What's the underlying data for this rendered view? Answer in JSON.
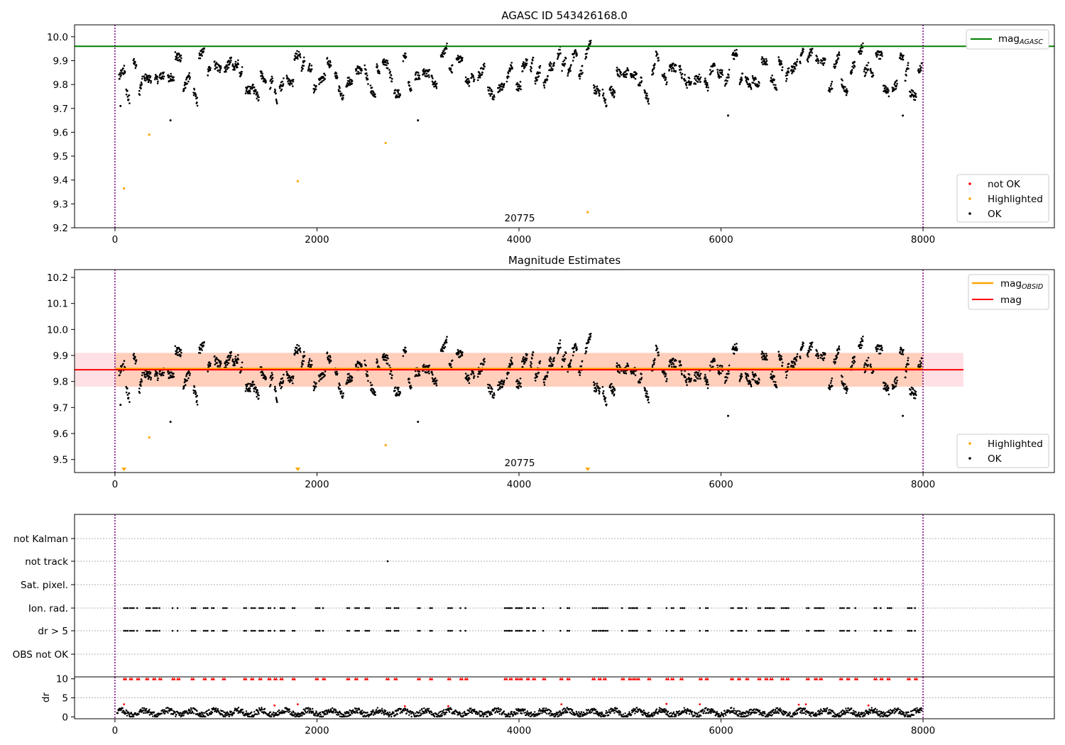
{
  "chart_data": [
    {
      "type": "scatter",
      "title": "AGASC ID 543426168.0",
      "xlim": [
        -400,
        9300
      ],
      "ylim": [
        9.2,
        10.05
      ],
      "xticks": [
        0,
        2000,
        4000,
        6000,
        8000
      ],
      "yticks": [
        9.2,
        9.3,
        9.4,
        9.5,
        9.6,
        9.7,
        9.8,
        9.9,
        10.0
      ],
      "vlines": [
        0,
        8000
      ],
      "hline": {
        "name": "mag_AGASC",
        "y": 9.96,
        "color": "#008000"
      },
      "obsid_label": {
        "text": "20775",
        "x": 4000
      },
      "band": {
        "center": 9.85,
        "low": 9.78,
        "high": 9.91
      },
      "highlighted_points": [
        {
          "x": 90,
          "y": 9.365
        },
        {
          "x": 340,
          "y": 9.59
        },
        {
          "x": 1810,
          "y": 9.395
        },
        {
          "x": 2680,
          "y": 9.555
        },
        {
          "x": 4680,
          "y": 9.265
        }
      ],
      "outlier_points": [
        {
          "x": 55,
          "y": 9.71
        },
        {
          "x": 550,
          "y": 9.65
        },
        {
          "x": 3000,
          "y": 9.65
        },
        {
          "x": 6070,
          "y": 9.67
        },
        {
          "x": 7800,
          "y": 9.67
        }
      ],
      "legends": {
        "line": [
          "mag_AGASC"
        ],
        "points": [
          "not OK",
          "Highlighted",
          "OK"
        ]
      },
      "colors": {
        "ok": "#000000",
        "not_ok": "#ff0000",
        "highlighted": "#ffa500"
      }
    },
    {
      "type": "scatter",
      "title": "Magnitude Estimates",
      "xlim": [
        -400,
        9300
      ],
      "ylim": [
        9.45,
        10.23
      ],
      "xticks": [
        0,
        2000,
        4000,
        6000,
        8000
      ],
      "yticks": [
        9.5,
        9.6,
        9.7,
        9.8,
        9.9,
        10.0,
        10.1,
        10.2
      ],
      "vlines": [
        0,
        8000
      ],
      "obsid_mag": {
        "name": "mag_OBSID",
        "y": 9.85,
        "low": 9.78,
        "high": 9.91,
        "x_end": 8400,
        "color": "#ffa500"
      },
      "mag": {
        "name": "mag",
        "y": 9.845,
        "low": 9.78,
        "high": 9.91,
        "x_end": 8400,
        "color": "#ff0000"
      },
      "obsid_label": {
        "text": "20775",
        "x": 4000
      },
      "band": {
        "center": 9.85,
        "low": 9.78,
        "high": 9.91
      },
      "highlighted_points": [
        {
          "x": 340,
          "y": 9.585
        },
        {
          "x": 2680,
          "y": 9.555
        }
      ],
      "offscale_markers": [
        {
          "x": 90
        },
        {
          "x": 1810
        },
        {
          "x": 4680
        }
      ],
      "outlier_points": [
        {
          "x": 55,
          "y": 9.71
        },
        {
          "x": 550,
          "y": 9.645
        },
        {
          "x": 3000,
          "y": 9.645
        },
        {
          "x": 6070,
          "y": 9.668
        },
        {
          "x": 7800,
          "y": 9.668
        }
      ],
      "legends": {
        "line": [
          "mag_OBSID",
          "mag"
        ],
        "points": [
          "Highlighted",
          "OK"
        ]
      }
    },
    {
      "type": "scatter",
      "categories": [
        "not Kalman",
        "not track",
        "Sat. pixel.",
        "Ion. rad.",
        "dr > 5",
        "OBS not OK"
      ],
      "xlim": [
        -400,
        9300
      ],
      "vlines": [
        0,
        8000
      ],
      "not_track_points": [
        2700
      ],
      "flag_times": [
        90,
        150,
        220,
        310,
        380,
        440,
        570,
        620,
        760,
        880,
        960,
        1070,
        1280,
        1350,
        1430,
        1520,
        1580,
        1640,
        1760,
        1990,
        2060,
        2300,
        2380,
        2480,
        2690,
        2770,
        3000,
        3120,
        3300,
        3420,
        3470,
        3860,
        3910,
        3970,
        4010,
        4080,
        4140,
        4240,
        4410,
        4480,
        4730,
        4790,
        4840,
        5020,
        5090,
        5130,
        5170,
        5280,
        5460,
        5510,
        5600,
        5790,
        5850,
        6100,
        6170,
        6250,
        6370,
        6440,
        6490,
        6600,
        6650,
        6850,
        6930,
        6980,
        7180,
        7250,
        7330,
        7520,
        7580,
        7650,
        7850,
        7920
      ]
    },
    {
      "type": "line",
      "ylabel": "dr",
      "xlim": [
        -400,
        9300
      ],
      "ylim": [
        -0.5,
        10.5
      ],
      "xticks": [
        0,
        2000,
        4000,
        6000,
        8000
      ],
      "yticks": [
        0,
        5,
        10
      ],
      "vlines": [
        0,
        8000
      ],
      "dr_baseline": 1.1,
      "dr_spikes": [
        {
          "x": 90,
          "y": 3.3
        },
        {
          "x": 1580,
          "y": 3.0
        },
        {
          "x": 1810,
          "y": 3.3
        },
        {
          "x": 2870,
          "y": 2.8
        },
        {
          "x": 3300,
          "y": 2.8
        },
        {
          "x": 4420,
          "y": 3.3
        },
        {
          "x": 5460,
          "y": 3.4
        },
        {
          "x": 5790,
          "y": 3.3
        },
        {
          "x": 6770,
          "y": 3.2
        },
        {
          "x": 6840,
          "y": 3.3
        },
        {
          "x": 7460,
          "y": 3.0
        }
      ],
      "dr_capped_y": 10
    }
  ],
  "panel_labels": {
    "legend1_line": "mag",
    "legend1_line_sub": "AGASC",
    "legend1_p1": "not OK",
    "legend1_p2": "Highlighted",
    "legend1_p3": "OK",
    "legend2_line1": "mag",
    "legend2_line1_sub": "OBSID",
    "legend2_line2": "mag",
    "legend2_p1": "Highlighted",
    "legend2_p2": "OK",
    "obsid1": "20775",
    "obsid2": "20775",
    "title1": "AGASC ID 543426168.0",
    "title2": "Magnitude Estimates",
    "dr_label": "dr"
  }
}
